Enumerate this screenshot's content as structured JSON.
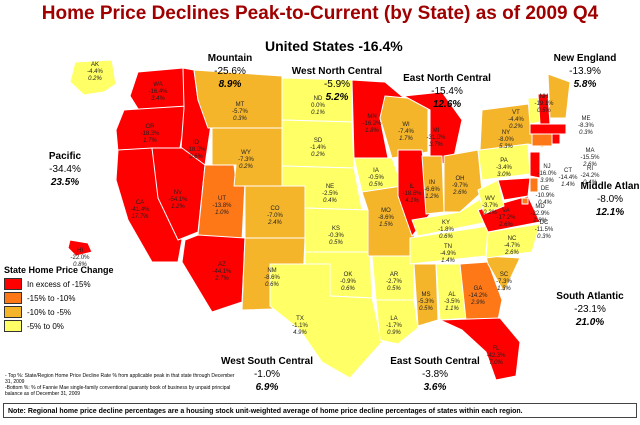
{
  "title": "Home Price Declines Peak-to-Current (by State) as of 2009 Q4",
  "us_total": "United States -16.4%",
  "colors": {
    "lt15": "#ff0000",
    "15to10": "#ff7818",
    "10to5": "#f5b52b",
    "5to0": "#ffff66",
    "border": "#ffffff",
    "title": "#a00000"
  },
  "legend": {
    "title": "State Home Price Change",
    "items": [
      {
        "label": "In excess of -15%",
        "color": "#ff0000"
      },
      {
        "label": "-15% to -10%",
        "color": "#ff7818"
      },
      {
        "label": "-10% to -5%",
        "color": "#f5b52b"
      },
      {
        "label": "-5% to 0%",
        "color": "#ffff66"
      }
    ]
  },
  "regions": [
    {
      "key": "pacific",
      "name": "Pacific",
      "value": "-34.4%",
      "bold": "23.5%"
    },
    {
      "key": "mountain",
      "name": "Mountain",
      "value": "-25.6%",
      "bold": "8.9%"
    },
    {
      "key": "wnc",
      "name": "West North Central",
      "value": "-5.9%",
      "bold": "5.2%"
    },
    {
      "key": "enc",
      "name": "East North Central",
      "value": "-15.4%",
      "bold": "12.6%"
    },
    {
      "key": "ne",
      "name": "New England",
      "value": "-13.9%",
      "bold": "5.8%"
    },
    {
      "key": "ma",
      "name": "Middle Atlan",
      "value": "-8.0%",
      "bold": "12.1%"
    },
    {
      "key": "sa",
      "name": "South Atlantic",
      "value": "-23.1%",
      "bold": "21.0%"
    },
    {
      "key": "esc",
      "name": "East South Central",
      "value": "-3.8%",
      "bold": "3.6%"
    },
    {
      "key": "wsc",
      "name": "West South Central",
      "value": "-1.0%",
      "bold": "6.9%"
    }
  ],
  "states": {
    "AK": [
      "AK",
      "-4.4%",
      "0.2%"
    ],
    "WA": [
      "WA",
      "-16.4%",
      "3.4%"
    ],
    "OR": [
      "OR",
      "-18.3%",
      "1.7%"
    ],
    "CA": [
      "CA",
      "-41.4%",
      "17.7%"
    ],
    "HI": [
      "HI",
      "-22.0%",
      "0.8%"
    ],
    "ID": [
      "ID",
      "-18.0%",
      "0.6%"
    ],
    "NV": [
      "NV",
      "-54.1%",
      "1.2%"
    ],
    "UT": [
      "UT",
      "-13.8%",
      "1.0%"
    ],
    "AZ": [
      "AZ",
      "-44.1%",
      "2.7%"
    ],
    "MT": [
      "MT",
      "-5.7%",
      "0.3%"
    ],
    "WY": [
      "WY",
      "-7.3%",
      "0.2%"
    ],
    "CO": [
      "CO",
      "-7.0%",
      "2.4%"
    ],
    "NM": [
      "NM",
      "-8.6%",
      "0.6%"
    ],
    "ND": [
      "ND",
      "0.0%",
      "0.1%"
    ],
    "SD": [
      "SD",
      "-1.4%",
      "0.2%"
    ],
    "NE": [
      "NE",
      "-2.5%",
      "0.4%"
    ],
    "KS": [
      "KS",
      "-0.3%",
      "0.5%"
    ],
    "OK": [
      "OK",
      "-0.9%",
      "0.6%"
    ],
    "TX": [
      "TX",
      "-1.1%",
      "4.9%"
    ],
    "MN": [
      "MN",
      "-16.2%",
      "1.8%"
    ],
    "IA": [
      "IA",
      "-0.5%",
      "0.5%"
    ],
    "MO": [
      "MO",
      "-8.6%",
      "1.5%"
    ],
    "AR": [
      "AR",
      "-2.7%",
      "0.5%"
    ],
    "LA": [
      "LA",
      "-1.7%",
      "0.9%"
    ],
    "WI": [
      "WI",
      "-7.4%",
      "1.7%"
    ],
    "IL": [
      "IL",
      "-18.6%",
      "4.1%"
    ],
    "MI": [
      "MI",
      "-31.0%",
      "3.7%"
    ],
    "IN": [
      "IN",
      "-6.6%",
      "1.2%"
    ],
    "OH": [
      "OH",
      "-9.7%",
      "2.6%"
    ],
    "KY": [
      "KY",
      "-1.8%",
      "0.6%"
    ],
    "TN": [
      "TN",
      "-4.9%",
      "1.4%"
    ],
    "MS": [
      "MS",
      "-5.3%",
      "0.5%"
    ],
    "AL": [
      "AL",
      "-3.5%",
      "1.1%"
    ],
    "GA": [
      "GA",
      "-14.2%",
      "2.9%"
    ],
    "FL": [
      "FL",
      "-42.3%",
      "7.0%"
    ],
    "SC": [
      "SC",
      "-7.3%",
      "1.3%"
    ],
    "NC": [
      "NC",
      "-4.7%",
      "2.6%"
    ],
    "VA": [
      "VA",
      "-17.2%",
      "2.6%"
    ],
    "WV": [
      "WV",
      "-3.7%",
      "0.2%"
    ],
    "PA": [
      "PA",
      "-3.4%",
      "3.0%"
    ],
    "NY": [
      "NY",
      "-8.0%",
      "5.3%"
    ],
    "VT": [
      "VT",
      "-4.4%",
      "0.2%"
    ],
    "NH": [
      "NH",
      "-19.1%",
      "0.5%"
    ],
    "ME": [
      "ME",
      "-8.3%",
      "0.3%"
    ],
    "MA": [
      "MA",
      "-15.5%",
      "2.6%"
    ],
    "RI": [
      "RI",
      "-24.2%",
      "0.4%"
    ],
    "CT": [
      "CT",
      "-14.4%",
      "1.4%"
    ],
    "NJ": [
      "NJ",
      "-16.0%",
      "3.9%"
    ],
    "DE": [
      "DE",
      "-10.9%",
      "0.4%"
    ],
    "MD": [
      "MD",
      "-22.9%",
      "2.8%"
    ],
    "DC": [
      "DC",
      "-11.5%",
      "0.3%"
    ]
  },
  "footnote_top": "- Top %: State/Region Home Price Decline Rate % from applicable peak in that state through December 31, 2009",
  "footnote_bottom": "-Bottom %: % of Fannie Mae single-family conventional guaranty book of business by unpaid principal balance as of December 31, 2009",
  "note": "Note: Regional home price decline percentages are a housing stock unit-weighted average of home price decline percentages of states within each region."
}
